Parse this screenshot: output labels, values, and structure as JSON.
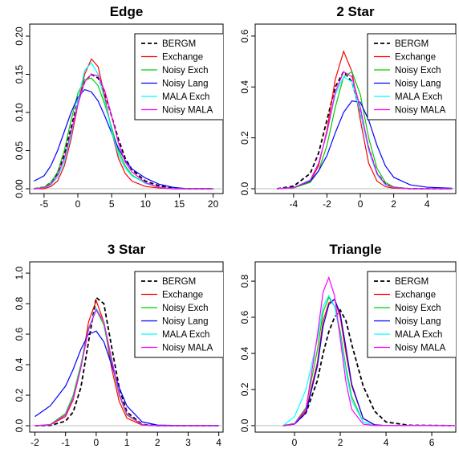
{
  "chart_data": [
    {
      "type": "line",
      "title": "Edge",
      "x": [
        -6.5,
        -5,
        -4,
        -3,
        -2,
        -1,
        0,
        1,
        2,
        3,
        4,
        5,
        6,
        7,
        8,
        10,
        12,
        14,
        16,
        20
      ],
      "series": [
        {
          "name": "BERGM",
          "color": "#000000",
          "dashed": true,
          "values": [
            0,
            0.002,
            0.008,
            0.02,
            0.045,
            0.08,
            0.115,
            0.14,
            0.15,
            0.145,
            0.125,
            0.095,
            0.065,
            0.04,
            0.025,
            0.01,
            0.004,
            0.001,
            0,
            0
          ]
        },
        {
          "name": "Exchange",
          "color": "#ff0000",
          "dashed": false,
          "values": [
            0,
            0,
            0.003,
            0.01,
            0.03,
            0.065,
            0.11,
            0.15,
            0.17,
            0.16,
            0.12,
            0.075,
            0.04,
            0.02,
            0.01,
            0.003,
            0.001,
            0,
            0,
            0
          ]
        },
        {
          "name": "Noisy Exch",
          "color": "#00cd00",
          "dashed": false,
          "values": [
            0,
            0.002,
            0.008,
            0.022,
            0.05,
            0.09,
            0.125,
            0.143,
            0.145,
            0.135,
            0.11,
            0.08,
            0.05,
            0.03,
            0.018,
            0.007,
            0.002,
            0,
            0,
            0
          ]
        },
        {
          "name": "Noisy Lang",
          "color": "#0000ff",
          "dashed": false,
          "values": [
            0.01,
            0.017,
            0.03,
            0.05,
            0.075,
            0.1,
            0.12,
            0.13,
            0.127,
            0.115,
            0.095,
            0.073,
            0.053,
            0.037,
            0.026,
            0.014,
            0.006,
            0.002,
            0,
            0
          ]
        },
        {
          "name": "MALA Exch",
          "color": "#00ffff",
          "dashed": false,
          "values": [
            0,
            0.001,
            0.005,
            0.015,
            0.035,
            0.07,
            0.115,
            0.155,
            0.165,
            0.15,
            0.115,
            0.075,
            0.045,
            0.027,
            0.017,
            0.007,
            0.002,
            0,
            0,
            0
          ]
        },
        {
          "name": "Noisy MALA",
          "color": "#ff00ff",
          "dashed": false,
          "values": [
            0,
            0.001,
            0.006,
            0.018,
            0.04,
            0.075,
            0.11,
            0.14,
            0.15,
            0.148,
            0.128,
            0.095,
            0.06,
            0.035,
            0.022,
            0.008,
            0.002,
            0,
            0,
            0
          ]
        }
      ],
      "xlim": [
        -7.12,
        21.47
      ],
      "ylim": [
        -0.0063,
        0.2158
      ],
      "xticks": [
        -5,
        0,
        5,
        10,
        15,
        20
      ],
      "yticks": [
        {
          "value": 0,
          "label": "0.00"
        },
        {
          "value": 0.05,
          "label": "0.05"
        },
        {
          "value": 0.1,
          "label": "0.10"
        },
        {
          "value": 0.15,
          "label": "0.15"
        },
        {
          "value": 0.2,
          "label": "0.20"
        }
      ],
      "zero_line": true,
      "legend": "topright"
    },
    {
      "type": "line",
      "title": "2 Star",
      "x": [
        -5,
        -4,
        -3,
        -2.5,
        -2,
        -1.5,
        -1,
        -0.5,
        0,
        0.5,
        1,
        1.5,
        2,
        3,
        4,
        5.5
      ],
      "series": [
        {
          "name": "BERGM",
          "color": "#000000",
          "dashed": true,
          "values": [
            0,
            0.01,
            0.06,
            0.14,
            0.27,
            0.4,
            0.46,
            0.42,
            0.3,
            0.16,
            0.06,
            0.02,
            0.005,
            0,
            0,
            0
          ]
        },
        {
          "name": "Exchange",
          "color": "#ff0000",
          "dashed": false,
          "values": [
            0,
            0.003,
            0.03,
            0.09,
            0.23,
            0.43,
            0.54,
            0.46,
            0.27,
            0.1,
            0.03,
            0.008,
            0.002,
            0,
            0,
            0
          ]
        },
        {
          "name": "Noisy Exch",
          "color": "#00cd00",
          "dashed": false,
          "values": [
            0,
            0.003,
            0.025,
            0.07,
            0.17,
            0.32,
            0.44,
            0.46,
            0.37,
            0.2,
            0.08,
            0.025,
            0.007,
            0,
            0,
            0
          ]
        },
        {
          "name": "Noisy Lang",
          "color": "#0000ff",
          "dashed": false,
          "values": [
            0,
            0.005,
            0.03,
            0.07,
            0.13,
            0.22,
            0.3,
            0.345,
            0.34,
            0.27,
            0.17,
            0.09,
            0.045,
            0.015,
            0.006,
            0.002
          ]
        },
        {
          "name": "MALA Exch",
          "color": "#00ffff",
          "dashed": false,
          "values": [
            0,
            0.004,
            0.035,
            0.1,
            0.22,
            0.37,
            0.44,
            0.42,
            0.3,
            0.15,
            0.055,
            0.015,
            0.004,
            0,
            0,
            0
          ]
        },
        {
          "name": "Noisy MALA",
          "color": "#ff00ff",
          "dashed": false,
          "values": [
            0,
            0.004,
            0.033,
            0.1,
            0.22,
            0.38,
            0.46,
            0.44,
            0.32,
            0.16,
            0.06,
            0.018,
            0.005,
            0,
            0,
            0
          ]
        }
      ],
      "xlim": [
        -6.3,
        5.72
      ],
      "ylim": [
        -0.019,
        0.647
      ],
      "xticks": [
        -4,
        -2,
        0,
        2,
        4
      ],
      "yticks": [
        {
          "value": 0,
          "label": "0.0"
        },
        0.2,
        0.4,
        0.6
      ],
      "zero_line": true,
      "legend": "topright"
    },
    {
      "type": "line",
      "title": "3 Star",
      "x": [
        -2,
        -1.5,
        -1,
        -0.75,
        -0.5,
        -0.25,
        0,
        0.25,
        0.5,
        0.75,
        1,
        1.5,
        2,
        3,
        4
      ],
      "series": [
        {
          "name": "BERGM",
          "color": "#000000",
          "dashed": true,
          "values": [
            0,
            0.002,
            0.03,
            0.09,
            0.25,
            0.55,
            0.84,
            0.8,
            0.52,
            0.25,
            0.09,
            0.008,
            0,
            0,
            0
          ]
        },
        {
          "name": "Exchange",
          "color": "#ff0000",
          "dashed": false,
          "values": [
            0,
            0.005,
            0.06,
            0.17,
            0.38,
            0.68,
            0.82,
            0.68,
            0.38,
            0.16,
            0.05,
            0.004,
            0,
            0,
            0
          ]
        },
        {
          "name": "Noisy Exch",
          "color": "#00cd00",
          "dashed": false,
          "values": [
            0,
            0.008,
            0.08,
            0.2,
            0.4,
            0.64,
            0.76,
            0.66,
            0.42,
            0.2,
            0.07,
            0.006,
            0,
            0,
            0
          ]
        },
        {
          "name": "Noisy Lang",
          "color": "#0000ff",
          "dashed": false,
          "values": [
            0.06,
            0.13,
            0.26,
            0.37,
            0.5,
            0.6,
            0.62,
            0.55,
            0.4,
            0.25,
            0.13,
            0.025,
            0.004,
            0,
            0
          ]
        },
        {
          "name": "MALA Exch",
          "color": "#00ffff",
          "dashed": false,
          "values": [
            0,
            0.006,
            0.07,
            0.18,
            0.38,
            0.63,
            0.77,
            0.68,
            0.44,
            0.21,
            0.075,
            0.007,
            0,
            0,
            0
          ]
        },
        {
          "name": "Noisy MALA",
          "color": "#ff00ff",
          "dashed": false,
          "values": [
            0,
            0.006,
            0.07,
            0.18,
            0.38,
            0.63,
            0.76,
            0.68,
            0.44,
            0.21,
            0.075,
            0.007,
            0,
            0,
            0
          ]
        }
      ],
      "xlim": [
        -2.17,
        4.14
      ],
      "ylim": [
        -0.042,
        1.074
      ],
      "xticks": [
        -2,
        -1,
        0,
        1,
        2,
        3,
        4
      ],
      "yticks": [
        {
          "value": 0,
          "label": "0.0"
        },
        0.2,
        0.4,
        0.6,
        0.8,
        {
          "value": 1,
          "label": "1.0"
        }
      ],
      "zero_line": true,
      "legend": "topright"
    },
    {
      "type": "line",
      "title": "Triangle",
      "x": [
        -0.5,
        0,
        0.5,
        1,
        1.25,
        1.5,
        1.75,
        2,
        2.25,
        2.5,
        3,
        3.5,
        4,
        5,
        7
      ],
      "series": [
        {
          "name": "BERGM",
          "color": "#000000",
          "dashed": true,
          "values": [
            0,
            0.01,
            0.07,
            0.25,
            0.4,
            0.52,
            0.6,
            0.64,
            0.58,
            0.45,
            0.22,
            0.08,
            0.02,
            0.002,
            0
          ]
        },
        {
          "name": "Exchange",
          "color": "#ff0000",
          "dashed": false,
          "values": [
            0,
            0.01,
            0.08,
            0.35,
            0.58,
            0.68,
            0.7,
            0.6,
            0.4,
            0.22,
            0.04,
            0.005,
            0,
            0,
            0
          ]
        },
        {
          "name": "Noisy Exch",
          "color": "#00cd00",
          "dashed": false,
          "values": [
            0,
            0.012,
            0.1,
            0.42,
            0.63,
            0.71,
            0.66,
            0.52,
            0.32,
            0.16,
            0.02,
            0,
            0,
            0,
            0
          ]
        },
        {
          "name": "Noisy Lang",
          "color": "#0000ff",
          "dashed": false,
          "values": [
            0,
            0.008,
            0.07,
            0.33,
            0.55,
            0.67,
            0.7,
            0.62,
            0.43,
            0.23,
            0.04,
            0.004,
            0,
            0,
            0
          ]
        },
        {
          "name": "MALA Exch",
          "color": "#00ffff",
          "dashed": false,
          "values": [
            0,
            0.05,
            0.2,
            0.48,
            0.66,
            0.72,
            0.66,
            0.5,
            0.3,
            0.14,
            0.02,
            0,
            0,
            0,
            0
          ]
        },
        {
          "name": "Noisy MALA",
          "color": "#ff00ff",
          "dashed": false,
          "values": [
            0,
            0.01,
            0.09,
            0.5,
            0.74,
            0.82,
            0.72,
            0.48,
            0.24,
            0.09,
            0.008,
            0,
            0,
            0,
            0
          ]
        }
      ],
      "xlim": [
        -1.72,
        7.05
      ],
      "ylim": [
        -0.036,
        0.907
      ],
      "xticks": [
        0,
        2,
        4,
        6
      ],
      "yticks": [
        {
          "value": 0,
          "label": "0.0"
        },
        0.2,
        0.4,
        0.6,
        0.8
      ],
      "zero_line": true,
      "legend": "topright"
    }
  ]
}
